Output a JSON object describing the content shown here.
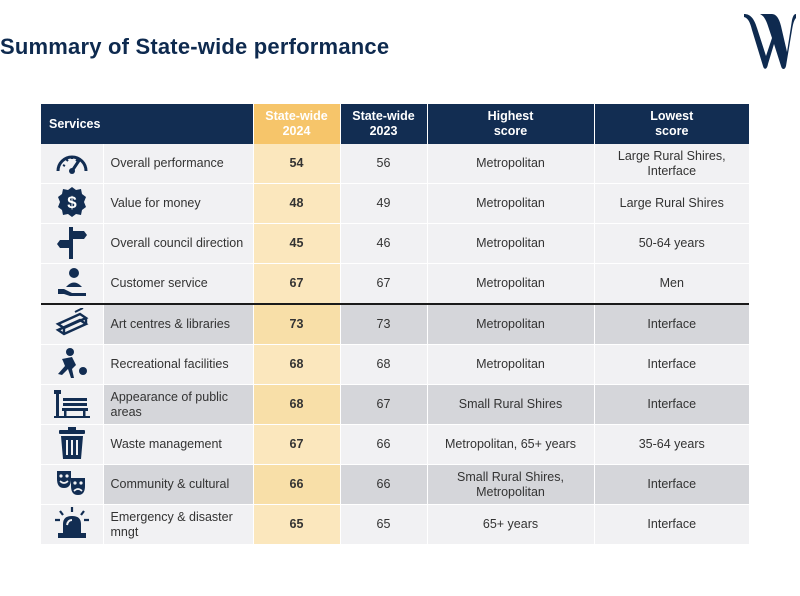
{
  "title": "Summary of State-wide performance",
  "colors": {
    "navy": "#122d52",
    "highlight": "#f6c56a",
    "red": "#d12a1c",
    "green": "#35a13d"
  },
  "table": {
    "headers": {
      "services": "Services",
      "sw2024": "State-wide 2024",
      "sw2023": "State-wide 2023",
      "highest": "Highest score",
      "lowest": "Lowest score"
    },
    "rows": [
      {
        "icon": "speedometer-icon",
        "service": "Overall performance",
        "sw2024": "54",
        "sw2024_color": "red",
        "sw2023": "56",
        "highest": "Metropolitan",
        "lowest": "Large Rural Shires, Interface"
      },
      {
        "icon": "dollar-badge-icon",
        "service": "Value for money",
        "sw2024": "48",
        "sw2024_color": "red",
        "sw2023": "49",
        "highest": "Metropolitan",
        "lowest": "Large Rural Shires"
      },
      {
        "icon": "signpost-icon",
        "service": "Overall council direction",
        "sw2024": "45",
        "sw2024_color": "red",
        "sw2023": "46",
        "highest": "Metropolitan",
        "lowest": "50-64 years"
      },
      {
        "icon": "customer-service-icon",
        "service": "Customer service",
        "sw2024": "67",
        "sw2024_color": "black",
        "sw2023": "67",
        "highest": "Metropolitan",
        "lowest": "Men"
      },
      {
        "icon": "books-icon",
        "service": "Art centres & libraries",
        "sw2024": "73",
        "sw2024_color": "black",
        "sw2023": "73",
        "highest": "Metropolitan",
        "lowest": "Interface"
      },
      {
        "icon": "ball-player-icon",
        "service": "Recreational facilities",
        "sw2024": "68",
        "sw2024_color": "black",
        "sw2023": "68",
        "highest": "Metropolitan",
        "lowest": "Interface"
      },
      {
        "icon": "park-bench-icon",
        "service": "Appearance of public areas",
        "sw2024": "68",
        "sw2024_color": "green",
        "sw2023": "67",
        "highest": "Small Rural Shires",
        "lowest": "Interface"
      },
      {
        "icon": "trash-bin-icon",
        "service": "Waste management",
        "sw2024": "67",
        "sw2024_color": "green",
        "sw2023": "66",
        "highest": "Metropolitan, 65+ years",
        "lowest": "35-64 years"
      },
      {
        "icon": "theatre-masks-icon",
        "service": "Community  & cultural",
        "sw2024": "66",
        "sw2024_color": "black",
        "sw2023": "66",
        "highest": "Small Rural Shires, Metropolitan",
        "lowest": "Interface"
      },
      {
        "icon": "siren-light-icon",
        "service": "Emergency & disaster mngt",
        "sw2024": "65",
        "sw2024_color": "black",
        "sw2023": "65",
        "highest": "65+ years",
        "lowest": "Interface"
      }
    ]
  }
}
